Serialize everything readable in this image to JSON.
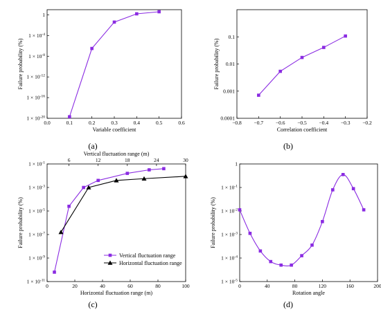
{
  "chart_data": [
    {
      "type": "line",
      "panel_label": "(a)",
      "xlabel": "Variable coefficient",
      "ylabel": "Failure probability (%)",
      "xlim": [
        0,
        0.6
      ],
      "xticks": [
        "0.0",
        "0.1",
        "0.2",
        "0.3",
        "0.4",
        "0.5",
        "0.6"
      ],
      "ylog": true,
      "ylim_exp": [
        -20,
        1
      ],
      "yticks": [
        "1 × 10^-20",
        "1 × 10^-16",
        "1 × 10^-12",
        "1 × 10^-8",
        "1 × 10^-4",
        "1"
      ],
      "series": [
        {
          "color": "#8a2be2",
          "marker": "square",
          "x": [
            0.1,
            0.2,
            0.3,
            0.4,
            0.5
          ],
          "y_exp": [
            -19.7,
            -6.5,
            -1.4,
            0.2,
            0.6
          ]
        }
      ]
    },
    {
      "type": "line",
      "panel_label": "(b)",
      "xlabel": "Correlation coefficient",
      "ylabel": "Failure probability (%)",
      "xlim": [
        -0.8,
        -0.2
      ],
      "xticks": [
        "−0.8",
        "−0.7",
        "−0.6",
        "−0.5",
        "−0.4",
        "−0.3",
        "−0.2"
      ],
      "ylog": true,
      "ylim_exp": [
        -4,
        0
      ],
      "yticks": [
        "0.0001",
        "0.001",
        "0.01",
        "0.1"
      ],
      "series": [
        {
          "color": "#8a2be2",
          "marker": "square",
          "x": [
            -0.7,
            -0.6,
            -0.5,
            -0.4,
            -0.3
          ],
          "y_exp": [
            -3.15,
            -2.27,
            -1.76,
            -1.39,
            -0.97
          ]
        }
      ]
    },
    {
      "type": "line",
      "panel_label": "(c)",
      "xlabel": "Horizontal fluctuation range (m)",
      "x2label": "Vertical fluctuation range (m)",
      "ylabel": "Failure probability (%)",
      "xlim": [
        0,
        100
      ],
      "xticks": [
        "0",
        "20",
        "40",
        "60",
        "80",
        "100"
      ],
      "x2lim": [
        1.5,
        30
      ],
      "x2ticks": [
        "6",
        "12",
        "18",
        "24",
        "30"
      ],
      "ylog": true,
      "ylim_exp": [
        -11,
        -1
      ],
      "yticks": [
        "1 × 10^-11",
        "1 × 10^-9",
        "1 × 10^-7",
        "1 × 10^-5",
        "1 × 10^-3",
        "1 × 10^-1"
      ],
      "legend_position": "bottom-right",
      "series": [
        {
          "name": "Vertical fluctuation range",
          "color": "#8a2be2",
          "marker": "square",
          "axis": "top",
          "x": [
            3,
            6,
            9,
            12,
            18,
            22.5,
            25.5
          ],
          "y_exp": [
            -10.2,
            -4.6,
            -3.0,
            -2.4,
            -1.8,
            -1.5,
            -1.4
          ]
        },
        {
          "name": "Horizontal fluctuation range",
          "color": "#000000",
          "marker": "triangle",
          "axis": "bottom",
          "x": [
            10,
            30,
            50,
            70,
            100
          ],
          "y_exp": [
            -6.8,
            -3.0,
            -2.4,
            -2.25,
            -2.05
          ]
        }
      ]
    },
    {
      "type": "line",
      "panel_label": "(d)",
      "xlabel": "Rotation angle",
      "ylabel": "Failure probability (%)",
      "xlim": [
        0,
        200
      ],
      "xticks": [
        "0",
        "40",
        "80",
        "120",
        "160",
        "200"
      ],
      "ylog": true,
      "ylim_exp": [
        -5,
        0
      ],
      "yticks": [
        "1 × 10^-5",
        "1 × 10^-4",
        "1 × 10^-3",
        "1 × 10^-2",
        "1 × 10^-1",
        "1"
      ],
      "series": [
        {
          "color": "#8a2be2",
          "marker": "square",
          "x": [
            0,
            15,
            30,
            45,
            60,
            75,
            90,
            105,
            120,
            135,
            150,
            165,
            180
          ],
          "y_exp": [
            -1.95,
            -2.95,
            -3.7,
            -4.15,
            -4.3,
            -4.3,
            -3.9,
            -3.45,
            -2.45,
            -1.1,
            -0.45,
            -1.05,
            -1.95
          ]
        }
      ]
    }
  ]
}
